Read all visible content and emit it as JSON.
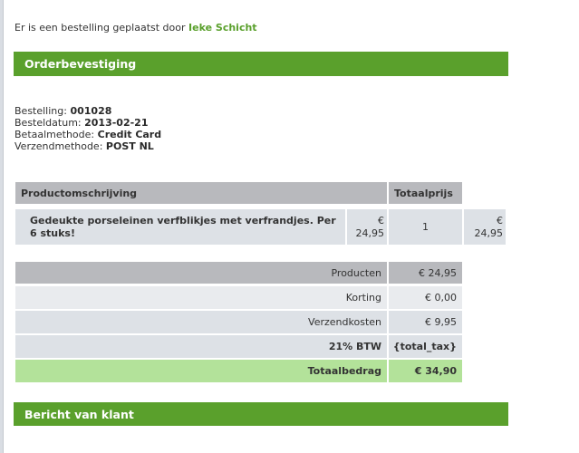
{
  "intro": {
    "text": "Er is een bestelling geplaatst door",
    "customer": "Ieke Schicht"
  },
  "order_header": "Orderbevestiging",
  "details": [
    {
      "label": "Bestelling:",
      "value": "001028"
    },
    {
      "label": "Besteldatum:",
      "value": "2013-02-21"
    },
    {
      "label": "Betaalmethode:",
      "value": "Credit Card"
    },
    {
      "label": "Verzendmethode:",
      "value": "POST NL"
    }
  ],
  "products_table": {
    "headers": [
      "Productomschrijving",
      "Totaalprijs"
    ],
    "rows": [
      {
        "description": "Gedeukte porseleinen verfblikjes met verfrandjes. Per 6 stuks!",
        "price": "€ 24,95",
        "qty": "1",
        "total": "€ 24,95"
      }
    ]
  },
  "summary": [
    {
      "label": "Producten",
      "value": "€ 24,95"
    },
    {
      "label": "Korting",
      "value": "€ 0,00"
    },
    {
      "label": "Verzendkosten",
      "value": "€ 9,95"
    },
    {
      "label": "21% BTW",
      "value": "{total_tax}"
    },
    {
      "label": "Totaalbedrag",
      "value": "€ 34,90"
    }
  ],
  "message_header": "Bericht van klant",
  "colors": {
    "accent": "#5aa02c",
    "total_row": "#b3e29a",
    "header_row": "#b8b9bd"
  }
}
